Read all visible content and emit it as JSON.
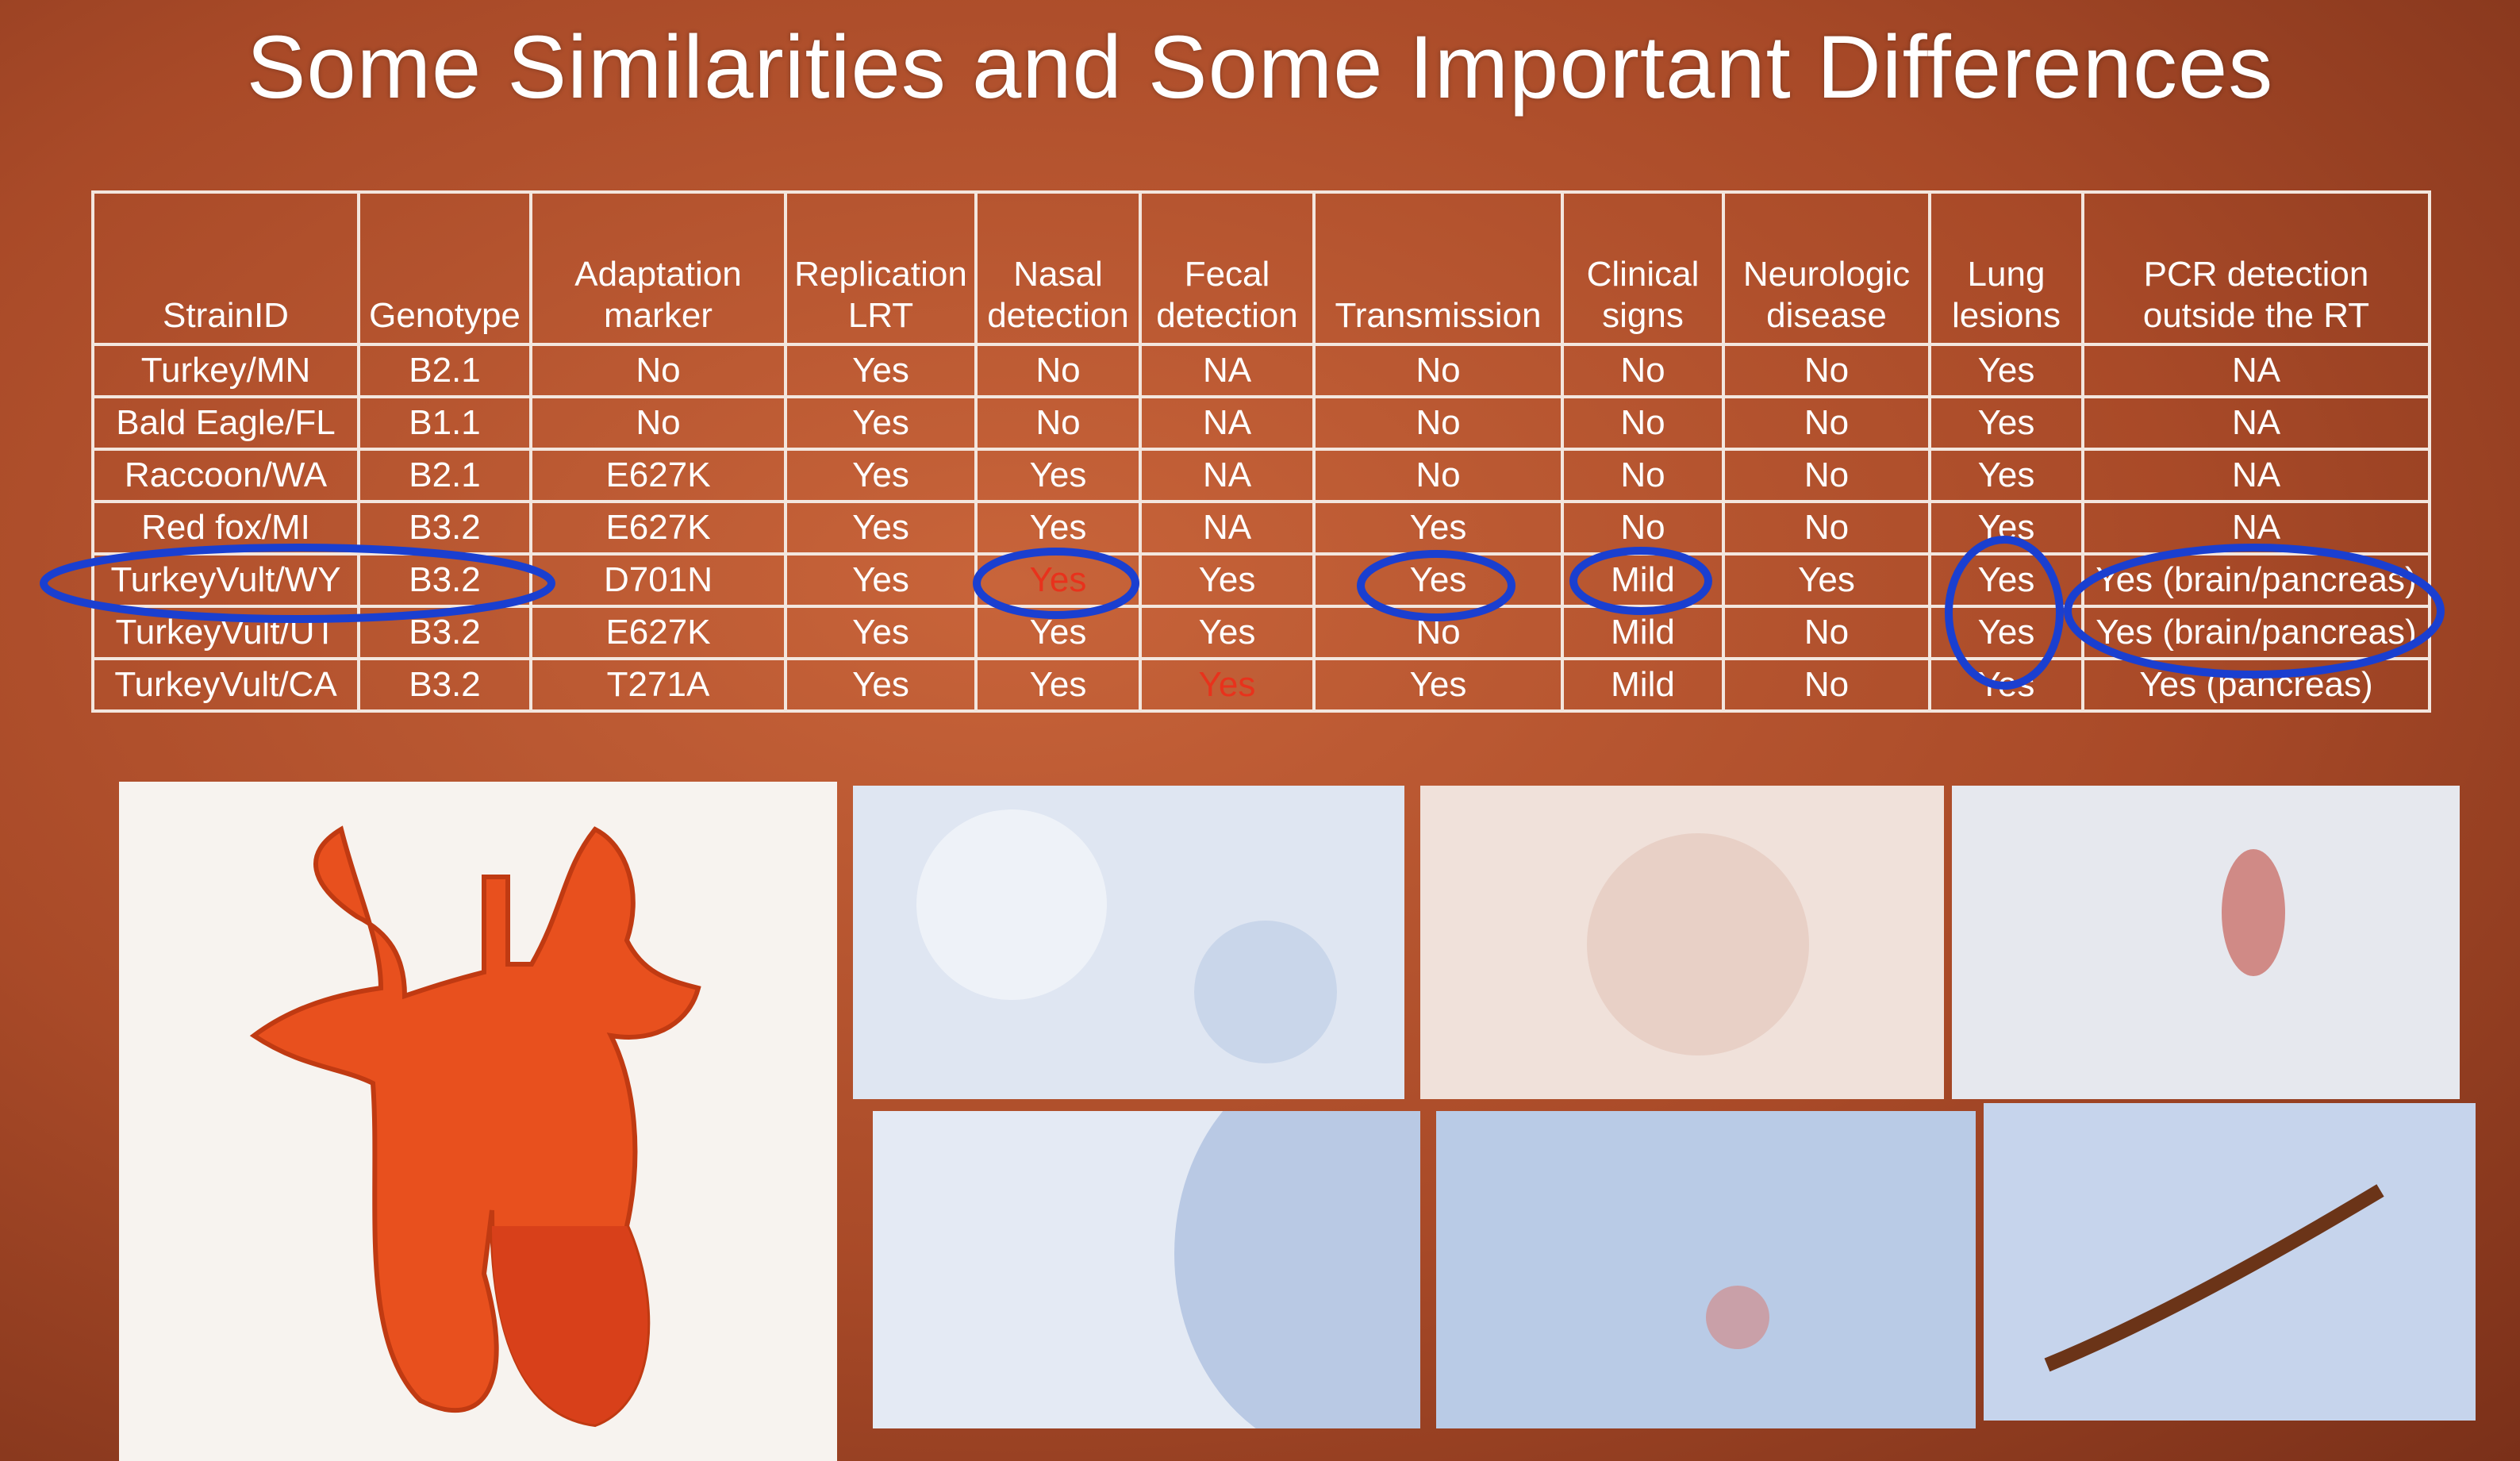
{
  "title": "Some Similarities and Some Important Differences",
  "table": {
    "header": [
      "StrainID",
      "Genotype",
      "Adaptation marker",
      "Replication LRT",
      "Nasal detection",
      "Fecal detection",
      "Transmission",
      "Clinical signs",
      "Neurologic disease",
      "Lung lesions",
      "PCR detection outside the RT"
    ],
    "rows": [
      [
        "Turkey/MN",
        "B2.1",
        "No",
        "Yes",
        "No",
        "NA",
        "No",
        "No",
        "No",
        "Yes",
        "NA"
      ],
      [
        "Bald Eagle/FL",
        "B1.1",
        "No",
        "Yes",
        "No",
        "NA",
        "No",
        "No",
        "No",
        "Yes",
        "NA"
      ],
      [
        "Raccoon/WA",
        "B2.1",
        "E627K",
        "Yes",
        "Yes",
        "NA",
        "No",
        "No",
        "No",
        "Yes",
        "NA"
      ],
      [
        "Red fox/MI",
        "B3.2",
        "E627K",
        "Yes",
        "Yes",
        "NA",
        "Yes",
        "No",
        "No",
        "Yes",
        "NA"
      ],
      [
        "TurkeyVult/WY",
        "B3.2",
        "D701N",
        "Yes",
        "Yes",
        "Yes",
        "Yes",
        "Mild",
        "Yes",
        "Yes",
        "Yes (brain/pancreas)"
      ],
      [
        "TurkeyVult/UT",
        "B3.2",
        "E627K",
        "Yes",
        "Yes",
        "Yes",
        "No",
        "Mild",
        "No",
        "Yes",
        "Yes (brain/pancreas)"
      ],
      [
        "TurkeyVult/CA",
        "B3.2",
        "T271A",
        "Yes",
        "Yes",
        "Yes",
        "Yes",
        "Mild",
        "No",
        "Yes",
        "Yes (pancreas)"
      ]
    ]
  }
}
